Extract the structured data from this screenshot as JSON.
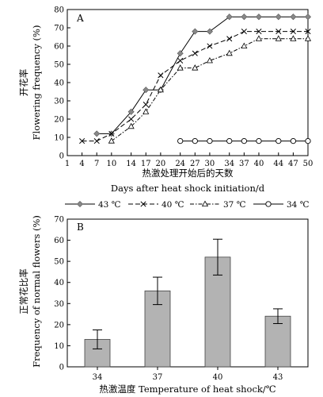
{
  "chart_data": [
    {
      "panel_label": "A",
      "type": "line",
      "ylabel_cn": "开花率",
      "ylabel": "Flowering frequency (%)",
      "xlabel_cn": "热激处理开始后的天数",
      "xlabel": "Days after heat shock initiation/d",
      "xlim": [
        1,
        50
      ],
      "ylim": [
        0,
        80
      ],
      "x_ticks": [
        1,
        4,
        7,
        10,
        14,
        17,
        20,
        24,
        27,
        30,
        34,
        37,
        40,
        44,
        47,
        50
      ],
      "y_ticks": [
        0,
        10,
        20,
        30,
        40,
        50,
        60,
        70,
        80
      ],
      "grid": false,
      "legend_position": "bottom",
      "series": [
        {
          "name": "43 ℃",
          "color": "#000000",
          "marker": "diamond-filled",
          "points": [
            [
              7,
              12
            ],
            [
              10,
              12
            ],
            [
              14,
              24
            ],
            [
              17,
              36
            ],
            [
              20,
              36
            ],
            [
              24,
              56
            ],
            [
              27,
              68
            ],
            [
              30,
              68
            ],
            [
              34,
              76
            ],
            [
              37,
              76
            ],
            [
              40,
              76
            ],
            [
              44,
              76
            ],
            [
              47,
              76
            ],
            [
              50,
              76
            ]
          ]
        },
        {
          "name": "40 ℃",
          "color": "#000000",
          "marker": "x",
          "points": [
            [
              4,
              8
            ],
            [
              7,
              8
            ],
            [
              10,
              12
            ],
            [
              14,
              20
            ],
            [
              17,
              28
            ],
            [
              20,
              44
            ],
            [
              24,
              52
            ],
            [
              27,
              56
            ],
            [
              30,
              60
            ],
            [
              34,
              64
            ],
            [
              37,
              68
            ],
            [
              40,
              68
            ],
            [
              44,
              68
            ],
            [
              47,
              68
            ],
            [
              50,
              68
            ]
          ]
        },
        {
          "name": "37 ℃",
          "color": "#000000",
          "marker": "triangle-open",
          "points": [
            [
              10,
              8
            ],
            [
              14,
              16
            ],
            [
              17,
              24
            ],
            [
              20,
              36
            ],
            [
              24,
              48
            ],
            [
              27,
              48
            ],
            [
              30,
              52
            ],
            [
              34,
              56
            ],
            [
              37,
              60
            ],
            [
              40,
              64
            ],
            [
              44,
              64
            ],
            [
              47,
              64
            ],
            [
              50,
              64
            ]
          ]
        },
        {
          "name": "34 ℃",
          "color": "#000000",
          "marker": "circle-open",
          "points": [
            [
              24,
              8
            ],
            [
              27,
              8
            ],
            [
              30,
              8
            ],
            [
              34,
              8
            ],
            [
              37,
              8
            ],
            [
              40,
              8
            ],
            [
              44,
              8
            ],
            [
              47,
              8
            ],
            [
              50,
              8
            ]
          ]
        }
      ]
    },
    {
      "panel_label": "B",
      "type": "bar",
      "ylabel_cn": "正常花比率",
      "ylabel": "Frequency of normal flowers (%)",
      "xlabel": "热激温度 Temperature of heat shock/℃",
      "categories": [
        "34",
        "37",
        "40",
        "43"
      ],
      "values": [
        13,
        36,
        52,
        24
      ],
      "errors": [
        4.5,
        6.5,
        8.5,
        3.5
      ],
      "ylim": [
        0,
        70
      ],
      "y_ticks": [
        0,
        10,
        20,
        30,
        40,
        50,
        60,
        70
      ],
      "bar_color": "#b3b3b3",
      "grid": false
    }
  ]
}
